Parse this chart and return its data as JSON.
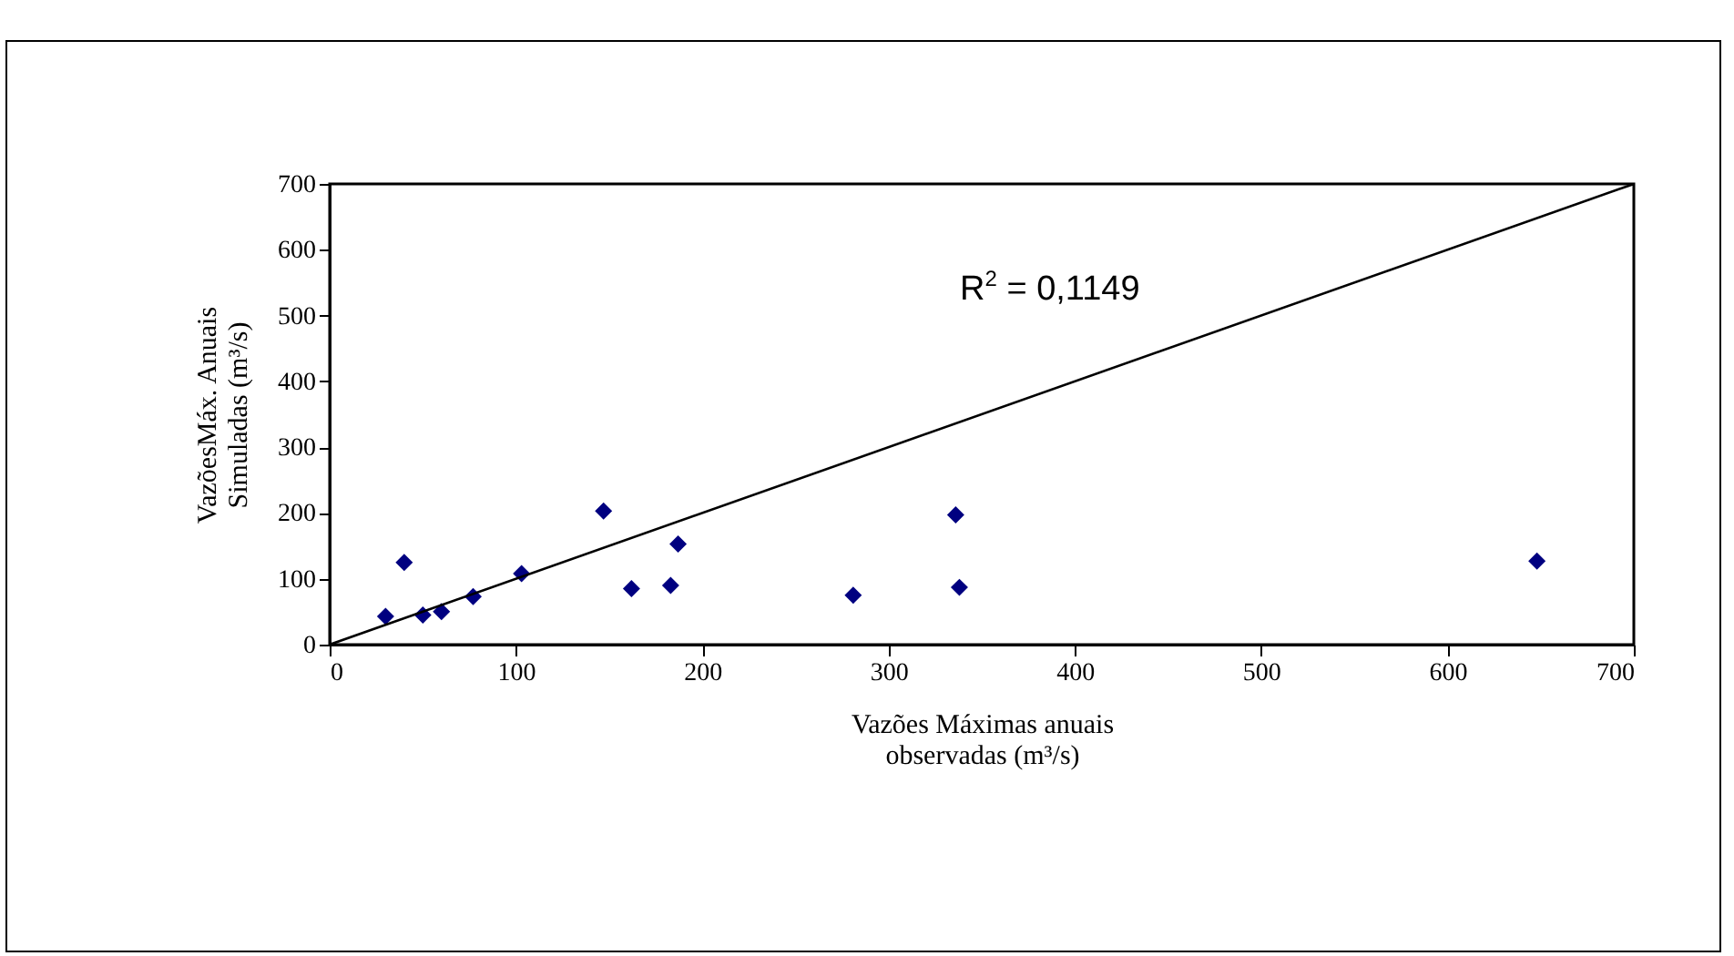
{
  "chart_data": {
    "type": "scatter",
    "xlabel": "Vazões Máximas anuais\nobservadas (m³/s)",
    "ylabel": "VazõesMáx. Anuais\nSimuladas (m³/s)",
    "xlim": [
      0,
      700
    ],
    "ylim": [
      0,
      700
    ],
    "xticks": [
      0,
      100,
      200,
      300,
      400,
      500,
      600,
      700
    ],
    "yticks": [
      0,
      100,
      200,
      300,
      400,
      500,
      600,
      700
    ],
    "grid": false,
    "annotations": [
      "R$^{2}$ = 0,1149"
    ],
    "series": [
      {
        "marker": "diamond",
        "color": "#000080",
        "x": [
          30,
          40,
          50,
          60,
          77,
          103,
          147,
          162,
          183,
          187,
          281,
          336,
          338,
          648
        ],
        "values": [
          43,
          125,
          45,
          50,
          73,
          108,
          203,
          85,
          90,
          153,
          75,
          197,
          87,
          127
        ]
      },
      {
        "type": "line",
        "color": "#000000",
        "x": [
          0,
          700
        ],
        "values": [
          0,
          700
        ]
      }
    ]
  }
}
